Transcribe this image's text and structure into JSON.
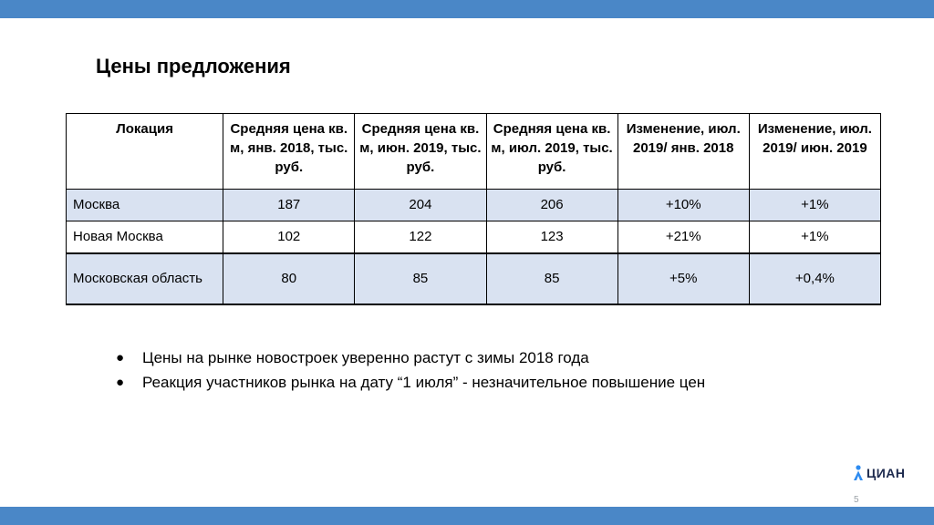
{
  "colors": {
    "band": "#4a87c7",
    "row_highlight": "#d9e2f1",
    "logo_accent": "#2d8bf0",
    "logo_text": "#1d2a4e"
  },
  "slide": {
    "title": "Цены предложения",
    "page_number": "5"
  },
  "table": {
    "headers": [
      "Локация",
      "Средняя цена кв. м, янв. 2018, тыс. руб.",
      "Средняя цена кв. м, июн. 2019, тыс. руб.",
      "Средняя цена кв. м, июл. 2019, тыс. руб.",
      "Изменение, июл. 2019/ янв. 2018",
      "Изменение, июл. 2019/ июн. 2019"
    ],
    "rows": [
      {
        "location": "Москва",
        "jan2018": "187",
        "jun2019": "204",
        "jul2019": "206",
        "change_jan2018": "+10%",
        "change_jun2019": "+1%"
      },
      {
        "location": "Новая Москва",
        "jan2018": "102",
        "jun2019": "122",
        "jul2019": "123",
        "change_jan2018": "+21%",
        "change_jun2019": "+1%"
      },
      {
        "location": "Московская область",
        "jan2018": "80",
        "jun2019": "85",
        "jul2019": "85",
        "change_jan2018": "+5%",
        "change_jun2019": "+0,4%"
      }
    ]
  },
  "bullets": [
    {
      "marker": "●",
      "text": "Цены на рынке новостроек уверенно растут с зимы 2018 года"
    },
    {
      "marker": "●",
      "text": "Реакция участников рынка на дату “1 июля” - незначительное повышение цен"
    }
  ],
  "logo": {
    "text": "ЦИАН",
    "icon": "cian-logo-icon"
  }
}
